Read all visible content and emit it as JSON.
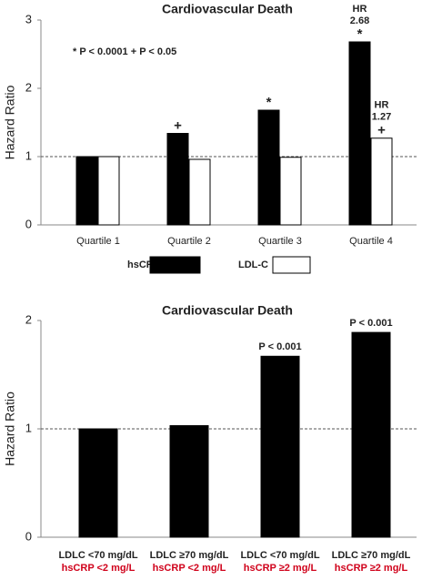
{
  "chart_data": [
    {
      "type": "bar",
      "title": "Cardiovascular Death",
      "y_label": "Hazard Ratio",
      "note": "* P < 0.0001   + P < 0.05",
      "categories": [
        "Quartile 1",
        "Quartile 2",
        "Quartile 3",
        "Quartile 4"
      ],
      "series": [
        {
          "name": "hsCRP",
          "color": "#000000",
          "values": [
            1,
            1.34,
            1.68,
            2.68
          ],
          "value_labels": [
            null,
            null,
            null,
            "2.68"
          ],
          "significance": [
            null,
            "+",
            "*",
            "*"
          ]
        },
        {
          "name": "LDL-C",
          "color": "#ffffff",
          "values": [
            1,
            0.96,
            0.99,
            1.27
          ],
          "value_labels": [
            null,
            null,
            null,
            "1.27"
          ],
          "significance": [
            null,
            null,
            null,
            "+"
          ]
        }
      ],
      "value_label_prefix": "HR",
      "ylim": [
        0,
        3
      ],
      "yticks": [
        0,
        1,
        2,
        3
      ],
      "reference_line": 1,
      "legend": "bottom"
    },
    {
      "type": "bar",
      "title": "Cardiovascular Death",
      "y_label": "Hazard Ratio",
      "categories": [
        "LDLC <70 mg/dL",
        "LDLC ≥70 mg/dL",
        "LDLC <70 mg/dL",
        "LDLC ≥70 mg/dL"
      ],
      "subcategories": [
        "hsCRP <2 mg/L",
        "hsCRP <2 mg/L",
        "hsCRP ≥2 mg/L",
        "hsCRP ≥2 mg/L"
      ],
      "subcategory_color": "#d0021b",
      "series": [
        {
          "color": "#000000",
          "values": [
            1,
            1.03,
            1.67,
            1.89
          ],
          "annotations": [
            null,
            null,
            "P < 0.001",
            "P < 0.001"
          ]
        }
      ],
      "ylim": [
        0,
        2
      ],
      "yticks": [
        0,
        1,
        2
      ],
      "reference_line": 1
    }
  ]
}
